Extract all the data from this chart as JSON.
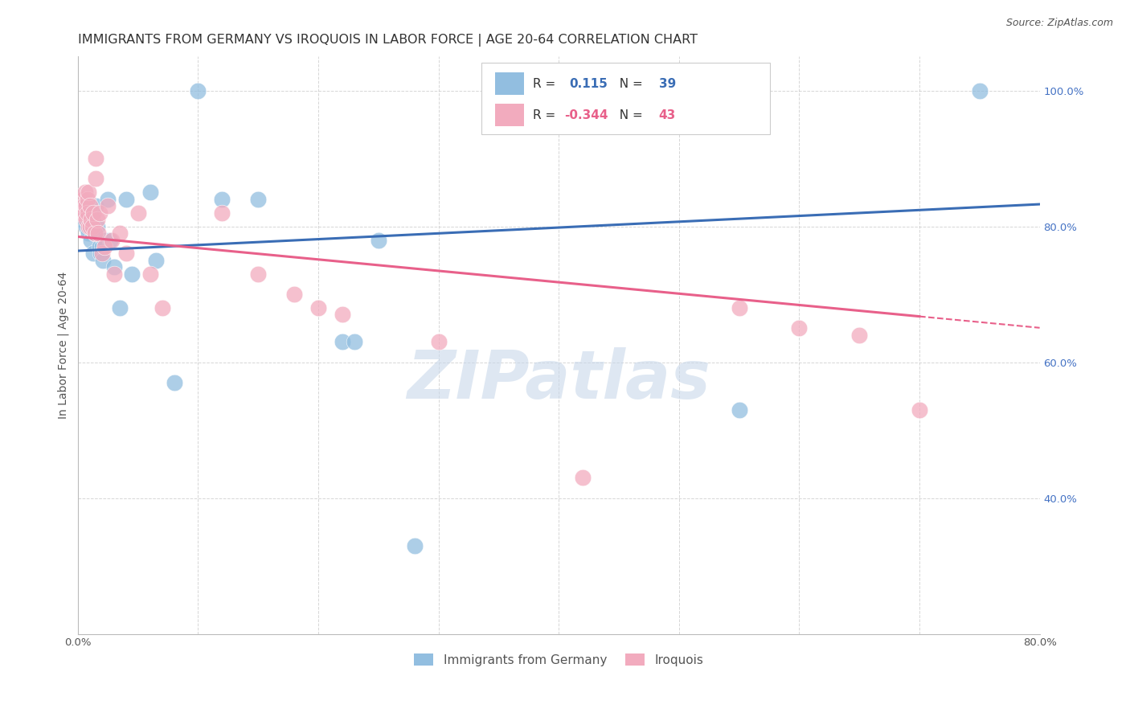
{
  "title": "IMMIGRANTS FROM GERMANY VS IROQUOIS IN LABOR FORCE | AGE 20-64 CORRELATION CHART",
  "source": "Source: ZipAtlas.com",
  "ylabel": "In Labor Force | Age 20-64",
  "xlim": [
    0.0,
    0.8
  ],
  "ylim": [
    0.2,
    1.05
  ],
  "x_ticks": [
    0.0,
    0.1,
    0.2,
    0.3,
    0.4,
    0.5,
    0.6,
    0.7,
    0.8
  ],
  "x_tick_labels": [
    "0.0%",
    "",
    "",
    "",
    "",
    "",
    "",
    "",
    "80.0%"
  ],
  "y_ticks": [
    0.2,
    0.4,
    0.6,
    0.8,
    1.0
  ],
  "y_tick_labels": [
    "",
    "40.0%",
    "60.0%",
    "80.0%",
    "100.0%"
  ],
  "grid_color": "#cccccc",
  "background_color": "#ffffff",
  "blue_scatter_x": [
    0.003,
    0.005,
    0.006,
    0.007,
    0.007,
    0.008,
    0.009,
    0.009,
    0.01,
    0.01,
    0.011,
    0.012,
    0.013,
    0.014,
    0.015,
    0.016,
    0.018,
    0.019,
    0.02,
    0.021,
    0.022,
    0.025,
    0.027,
    0.03,
    0.035,
    0.04,
    0.045,
    0.06,
    0.065,
    0.08,
    0.1,
    0.12,
    0.15,
    0.22,
    0.23,
    0.25,
    0.28,
    0.55,
    0.75
  ],
  "blue_scatter_y": [
    0.81,
    0.82,
    0.83,
    0.82,
    0.8,
    0.82,
    0.81,
    0.79,
    0.82,
    0.8,
    0.78,
    0.81,
    0.76,
    0.79,
    0.83,
    0.8,
    0.77,
    0.76,
    0.77,
    0.75,
    0.78,
    0.84,
    0.78,
    0.74,
    0.68,
    0.84,
    0.73,
    0.85,
    0.75,
    0.57,
    1.0,
    0.84,
    0.84,
    0.63,
    0.63,
    0.78,
    0.33,
    0.53,
    1.0
  ],
  "pink_scatter_x": [
    0.003,
    0.004,
    0.005,
    0.006,
    0.006,
    0.007,
    0.007,
    0.008,
    0.008,
    0.009,
    0.009,
    0.01,
    0.01,
    0.011,
    0.012,
    0.013,
    0.014,
    0.015,
    0.015,
    0.016,
    0.017,
    0.018,
    0.02,
    0.022,
    0.025,
    0.028,
    0.03,
    0.035,
    0.04,
    0.05,
    0.06,
    0.07,
    0.12,
    0.15,
    0.18,
    0.2,
    0.22,
    0.3,
    0.42,
    0.55,
    0.6,
    0.65,
    0.7
  ],
  "pink_scatter_y": [
    0.82,
    0.84,
    0.83,
    0.85,
    0.82,
    0.83,
    0.81,
    0.84,
    0.82,
    0.85,
    0.8,
    0.83,
    0.8,
    0.81,
    0.8,
    0.82,
    0.79,
    0.9,
    0.87,
    0.81,
    0.79,
    0.82,
    0.76,
    0.77,
    0.83,
    0.78,
    0.73,
    0.79,
    0.76,
    0.82,
    0.73,
    0.68,
    0.82,
    0.73,
    0.7,
    0.68,
    0.67,
    0.63,
    0.43,
    0.68,
    0.65,
    0.64,
    0.53
  ],
  "blue_color": "#92BEE0",
  "pink_color": "#F2ABBE",
  "blue_line_color": "#3A6DB5",
  "pink_line_color": "#E8608A",
  "blue_R": "0.115",
  "blue_N": "39",
  "pink_R": "-0.344",
  "pink_N": "43",
  "watermark_text": "ZIPatlas",
  "watermark_color": "#C8D8EA",
  "title_fontsize": 11.5,
  "axis_label_fontsize": 10,
  "tick_fontsize": 9.5,
  "source_fontsize": 9
}
